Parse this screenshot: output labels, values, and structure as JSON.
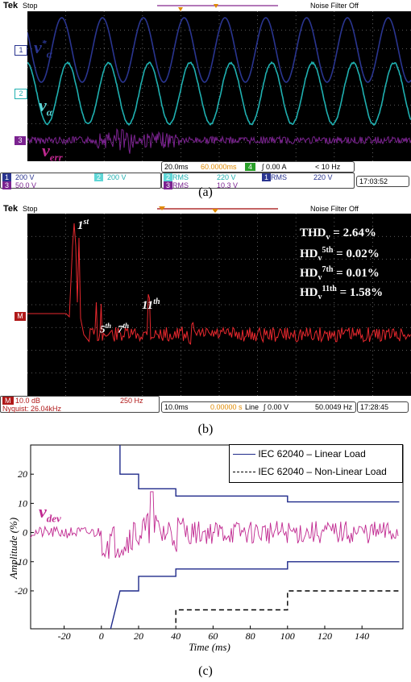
{
  "panel_a": {
    "brand": "Tek",
    "state": "Stop",
    "noise_filter": "Noise Filter Off",
    "ch_markers": [
      "1",
      "2",
      "3"
    ],
    "labels": {
      "v_alpha_star": "v",
      "v_alpha_star_sup": "*",
      "v_alpha_star_sub": "α",
      "v_alpha": "v",
      "v_alpha_sub": "α",
      "v_err": "v",
      "v_err_sub": "err"
    },
    "ch1_scale": "200 V",
    "ch2_scale": "200 V",
    "ch3_scale": "50.0 V",
    "ch1_tag": "1",
    "ch2_tag": "2",
    "ch3_tag": "3",
    "meas1_tag": "2",
    "meas1_label": "RMS",
    "meas1_value": "220 V",
    "meas2_tag": "1",
    "meas2_label": "RMS",
    "meas2_value": "220 V",
    "meas3_tag": "3",
    "meas3_label": "RMS",
    "meas3_value": "10.3 V",
    "timebase": "20.0ms",
    "trigger_pos": "60.0000ms",
    "trigger_ch": "4",
    "trigger_level": "∫ 0.00 A",
    "freq": "< 10 Hz",
    "time": "17:03:52",
    "caption": "(a)"
  },
  "panel_b": {
    "brand": "Tek",
    "state": "Stop",
    "noise_filter": "Noise Filter Off",
    "math_marker": "M",
    "ann_1st": "1",
    "ann_1st_sup": "st",
    "ann_5th": "5",
    "ann_5th_sup": "th",
    "ann_7th": "7",
    "ann_7th_sup": "th",
    "ann_11th": "11",
    "ann_11th_sup": "th",
    "thd_label": "THD",
    "thd_sub": "v",
    "thd_value": "= 2.64%",
    "hd5_label": "HD",
    "hd5_sub": "v",
    "hd5_sup": "5th",
    "hd5_value": "= 0.02%",
    "hd7_label": "HD",
    "hd7_sub": "v",
    "hd7_sup": "7th",
    "hd7_value": "= 0.01%",
    "hd11_label": "HD",
    "hd11_sub": "v",
    "hd11_sup": "11th",
    "hd11_value": "= 1.58%",
    "m_tag": "M",
    "m_scale": "10.0 dB",
    "m_span": "250 Hz",
    "nyquist": "Nyquist: 26.04kHz",
    "timebase": "10.0ms",
    "trigger_pos": "0.00000 s",
    "trigger_src": "Line",
    "trigger_level": "∫ 0.00 V",
    "freq": "50.0049 Hz",
    "time": "17:28:45",
    "caption": "(b)"
  },
  "panel_c": {
    "caption": "(c)",
    "chart_data": {
      "type": "line",
      "xlabel": "Time (ms)",
      "ylabel": "Amplitude (%)",
      "xlim": [
        -38,
        162
      ],
      "ylim": [
        -33,
        30
      ],
      "x_ticks": [
        -20,
        0,
        20,
        40,
        60,
        80,
        100,
        120,
        140
      ],
      "y_ticks": [
        20,
        10,
        0,
        -10,
        -20
      ],
      "trace_label": "v",
      "trace_label_sub": "dev",
      "legend": [
        "IEC 62040 – Linear Load",
        "IEC 62040 – Non-Linear Load"
      ],
      "legend_position": "top-right",
      "series": [
        {
          "name": "IEC 62040 – Linear Load",
          "style": "solid",
          "color": "#1f2a8a",
          "x": [
            10,
            10,
            20,
            20,
            40,
            40,
            100,
            100,
            160
          ],
          "y": [
            30,
            20,
            20,
            15,
            15,
            12.5,
            12.5,
            10.5,
            10.5
          ]
        },
        {
          "name": "IEC 62040 – Linear Load",
          "style": "solid",
          "color": "#1f2a8a",
          "x": [
            5,
            10,
            10,
            20,
            20,
            40,
            40,
            100,
            100,
            160
          ],
          "y": [
            -33,
            -20,
            -20,
            -20,
            -15,
            -15,
            -12.5,
            -12.5,
            -10,
            -10
          ]
        },
        {
          "name": "IEC 62040 – Non-Linear Load",
          "style": "dashed",
          "color": "#000000",
          "x": [
            40,
            40,
            100,
            100,
            160
          ],
          "y": [
            -31,
            -26.5,
            -26.5,
            -20,
            -20
          ]
        }
      ]
    }
  },
  "colors": {
    "ch1": "#2a3590",
    "ch2": "#1fb0b0",
    "ch3": "#7b2390",
    "math": "#e8282e",
    "dev": "#c02890",
    "limit": "#1f2a8a"
  }
}
